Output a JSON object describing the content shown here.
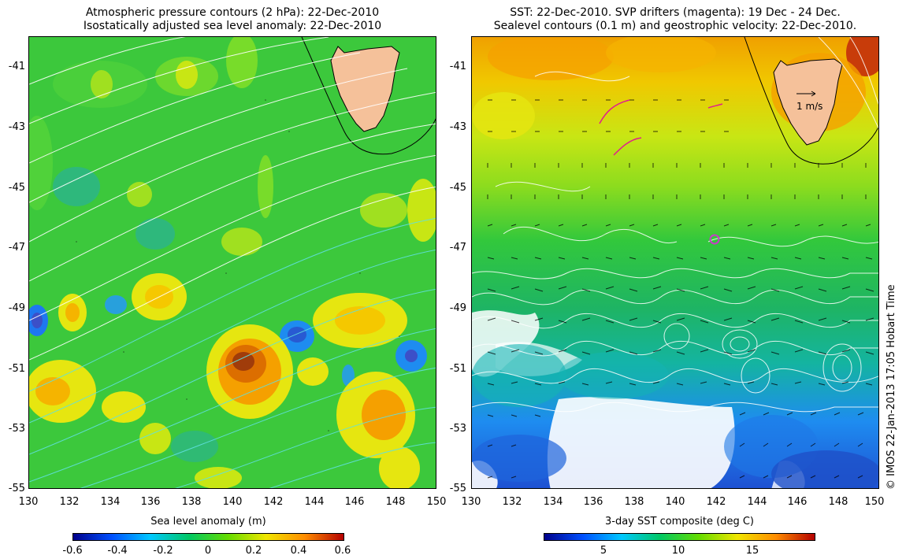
{
  "left": {
    "title_line1": "Atmospheric pressure contours (2 hPa): 22-Dec-2010",
    "title_line2": "Isostatically adjusted sea level anomaly: 22-Dec-2010",
    "colorbar_title": "Sea level anomaly (m)",
    "colorbar_ticks": [
      "-0.6",
      "-0.4",
      "-0.2",
      "0",
      "0.2",
      "0.4",
      "0.6"
    ],
    "colorbar_colors": [
      "#00008b",
      "#0050ff",
      "#00c8ff",
      "#00c864",
      "#64dc00",
      "#f0e600",
      "#ff8c00",
      "#b40000"
    ]
  },
  "right": {
    "title_line1": "SST: 22-Dec-2010. SVP drifters (magenta): 19 Dec - 24 Dec.",
    "title_line2": "Sealevel contours (0.1 m) and geostrophic velocity: 22-Dec-2010.",
    "colorbar_title": "3-day SST composite (deg C)",
    "colorbar_ticks": [
      "5",
      "10",
      "15"
    ],
    "colorbar_colors": [
      "#00008b",
      "#0050ff",
      "#00c8ff",
      "#00c864",
      "#64dc00",
      "#f0e600",
      "#ff8c00",
      "#b40000"
    ],
    "velocity_label": "1 m/s"
  },
  "lat_ticks": [
    "-41",
    "-43",
    "-45",
    "-47",
    "-49",
    "-51",
    "-53",
    "-55"
  ],
  "lon_ticks": [
    "130",
    "132",
    "134",
    "136",
    "138",
    "140",
    "142",
    "144",
    "146",
    "148",
    "150"
  ],
  "credit": "© IMOS 22-Jan-2013 17:05 Hobart Time",
  "colors": {
    "ocean_green": "#32c83c",
    "land": "#f5c19a",
    "contour_white": "#ffffff",
    "contour_cyan": "#60e0e0",
    "drifter": "#e0208c"
  }
}
